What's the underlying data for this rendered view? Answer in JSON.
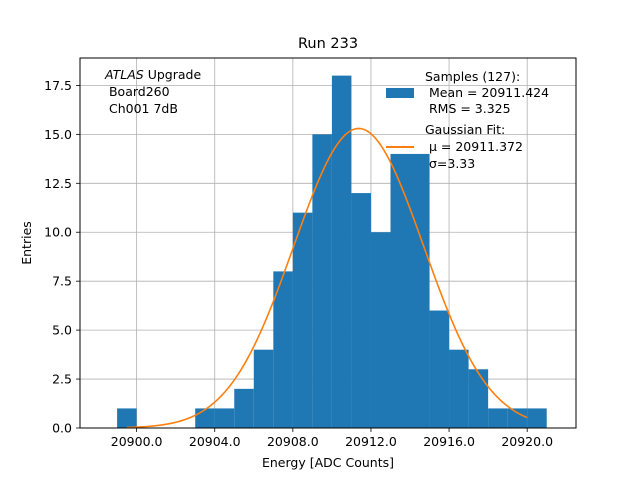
{
  "chart_data": {
    "type": "bar",
    "title": "Run 233",
    "xlabel": "Energy [ADC Counts]",
    "ylabel": "Entries",
    "xlim": [
      20897.1,
      20922.5
    ],
    "ylim": [
      0,
      18.9
    ],
    "grid": true,
    "x_ticks": [
      20900,
      20904,
      20908,
      20912,
      20916,
      20920
    ],
    "x_tick_labels": [
      "20900.0",
      "20904.0",
      "20908.0",
      "20912.0",
      "20916.0",
      "20920.0"
    ],
    "y_ticks": [
      0,
      2.5,
      5,
      7.5,
      10,
      12.5,
      15,
      17.5
    ],
    "y_tick_labels": [
      "0.0",
      "2.5",
      "5.0",
      "7.5",
      "10.0",
      "12.5",
      "15.0",
      "17.5"
    ],
    "bin_edges": [
      20899,
      20900,
      20901,
      20902,
      20903,
      20904,
      20905,
      20906,
      20907,
      20908,
      20909,
      20910,
      20911,
      20912,
      20913,
      20914,
      20915,
      20916,
      20917,
      20918,
      20919,
      20920,
      20921
    ],
    "counts": [
      1,
      0,
      0,
      0,
      1,
      1,
      2,
      4,
      8,
      11,
      15,
      18,
      12,
      10,
      14,
      14,
      6,
      4,
      3,
      1,
      1,
      1
    ],
    "fit": {
      "mu": 20911.372,
      "sigma": 3.33,
      "amplitude": 15.3,
      "x_range": [
        20899.5,
        20920
      ]
    },
    "colors": {
      "bars": "#1f77b4",
      "fit": "#ff7f0e",
      "grid": "#b0b0b0"
    },
    "annotation": {
      "italic": "ATLAS",
      "rest": " Upgrade",
      "line2": " Board260",
      "line3": " Ch001 7dB"
    },
    "legend": {
      "position": "upper right",
      "samples": [
        "Samples (127):",
        " Mean = 20911.424",
        " RMS = 3.325"
      ],
      "fit": [
        "Gaussian Fit:",
        " μ = 20911.372",
        " σ=3.33"
      ]
    }
  }
}
